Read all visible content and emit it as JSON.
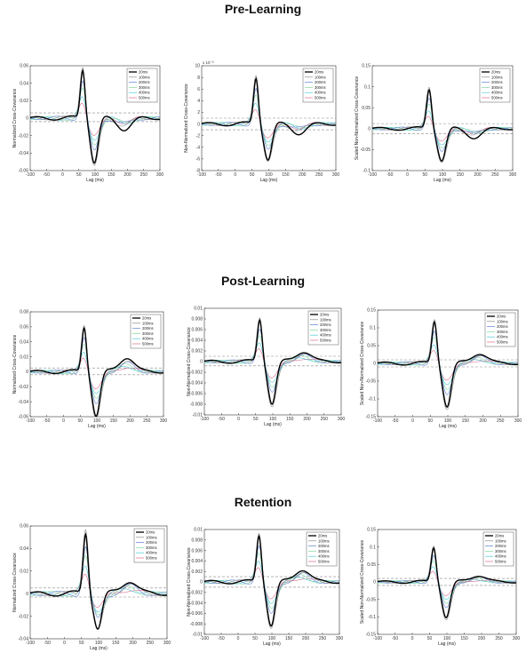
{
  "sections": [
    {
      "title": "Pre-Learning"
    },
    {
      "title": "Post-Learning"
    },
    {
      "title": "Retention"
    }
  ],
  "colors": {
    "20ms": "#000000",
    "100ms": "#8a8a8a",
    "200ms": "#5b7fd6",
    "300ms": "#7fd6a0",
    "400ms": "#49c9d6",
    "500ms": "#d96a8a",
    "threshold": "#888888"
  },
  "legend": [
    "20ms",
    "100ms",
    "200ms",
    "300ms",
    "400ms",
    "500ms"
  ],
  "chart_data": [
    {
      "type": "line",
      "section": "Pre-Learning",
      "xlabel": "Lag (ms)",
      "ylabel": "Normalized Cross-Covariance",
      "xlim": [
        -100,
        300
      ],
      "ylim": [
        -0.06,
        0.06
      ],
      "xticks": [
        "-100",
        "-50",
        "0",
        "50",
        "100",
        "150",
        "200",
        "250",
        "300"
      ],
      "yticks": [
        "0.06",
        "0.04",
        "0.02",
        "0",
        "-0.02",
        "-0.04",
        "-0.06"
      ],
      "exponent": "",
      "peak": 0.056,
      "trough": -0.05,
      "late": -0.012,
      "thr": [
        0.006,
        -0.004
      ]
    },
    {
      "type": "line",
      "section": "Pre-Learning",
      "xlabel": "Lag (ms)",
      "ylabel": "Non-Normalized Cross-Covariance",
      "xlim": [
        -100,
        300
      ],
      "ylim": [
        -8,
        10
      ],
      "xticks": [
        "-100",
        "-50",
        "0",
        "50",
        "100",
        "150",
        "200",
        "250",
        "300"
      ],
      "yticks": [
        "10",
        "8",
        "6",
        "4",
        "2",
        "0",
        "-2",
        "-4",
        "-6",
        "-8"
      ],
      "exponent": "x 10⁻³",
      "peak": 8,
      "trough": -6,
      "late": -1.5,
      "thr": [
        1,
        -1
      ]
    },
    {
      "type": "line",
      "section": "Pre-Learning",
      "xlabel": "Lag (ms)",
      "ylabel": "Scaled Non-Normalized Cross-Covariance",
      "xlim": [
        -100,
        300
      ],
      "ylim": [
        -0.1,
        0.15
      ],
      "xticks": [
        "-100",
        "-50",
        "0",
        "50",
        "100",
        "150",
        "200",
        "250",
        "300"
      ],
      "yticks": [
        "0.15",
        "0.1",
        "0.05",
        "0",
        "-0.05",
        "-0.1"
      ],
      "exponent": "",
      "peak": 0.095,
      "trough": -0.075,
      "late": -0.02,
      "thr": [
        0.012,
        -0.012
      ]
    },
    {
      "type": "line",
      "section": "Post-Learning",
      "xlabel": "Lag (ms)",
      "ylabel": "Normalized Cross-Covariance",
      "xlim": [
        -100,
        300
      ],
      "ylim": [
        -0.06,
        0.08
      ],
      "xticks": [
        "-100",
        "-50",
        "0",
        "50",
        "100",
        "150",
        "200",
        "250",
        "300"
      ],
      "yticks": [
        "0.08",
        "0.06",
        "0.04",
        "0.02",
        "0",
        "-0.02",
        "-0.04",
        "-0.06"
      ],
      "exponent": "",
      "peak": 0.06,
      "trough": -0.058,
      "late": 0.02,
      "thr": [
        0.005,
        -0.004
      ]
    },
    {
      "type": "line",
      "section": "Post-Learning",
      "xlabel": "Lag (ms)",
      "ylabel": "Non-Normalized Cross-Covariance",
      "xlim": [
        -100,
        300
      ],
      "ylim": [
        -0.01,
        0.01
      ],
      "xticks": [
        "-100",
        "-50",
        "0",
        "50",
        "100",
        "150",
        "200",
        "250",
        "300"
      ],
      "yticks": [
        "0.01",
        "0.008",
        "0.006",
        "0.004",
        "0.002",
        "0",
        "-0.002",
        "-0.004",
        "-0.006",
        "-0.008",
        "-0.01"
      ],
      "exponent": "",
      "peak": 0.008,
      "trough": -0.0078,
      "late": 0.002,
      "thr": [
        0.001,
        -0.0008
      ]
    },
    {
      "type": "line",
      "section": "Post-Learning",
      "xlabel": "Lag (ms)",
      "ylabel": "Scaled Non-Normalized Cross-Covariance",
      "xlim": [
        -100,
        300
      ],
      "ylim": [
        -0.15,
        0.15
      ],
      "xticks": [
        "-100",
        "-50",
        "0",
        "50",
        "100",
        "150",
        "200",
        "250",
        "300"
      ],
      "yticks": [
        "0.15",
        "0.1",
        "0.05",
        "0",
        "-0.05",
        "-0.1",
        "-0.15"
      ],
      "exponent": "",
      "peak": 0.12,
      "trough": -0.12,
      "late": 0.03,
      "thr": [
        0.01,
        -0.01
      ]
    },
    {
      "type": "line",
      "section": "Retention",
      "xlabel": "Lag (ms)",
      "ylabel": "Normalized Cross-Covariance",
      "xlim": [
        -100,
        300
      ],
      "ylim": [
        -0.04,
        0.06
      ],
      "xticks": [
        "-100",
        "-50",
        "0",
        "50",
        "100",
        "150",
        "200",
        "250",
        "300"
      ],
      "yticks": [
        "0.06",
        "0.04",
        "0.02",
        "0",
        "-0.02",
        "-0.04"
      ],
      "exponent": "",
      "peak": 0.054,
      "trough": -0.03,
      "late": 0.012,
      "thr": [
        0.005,
        -0.003
      ]
    },
    {
      "type": "line",
      "section": "Retention",
      "xlabel": "Lag (ms)",
      "ylabel": "Non-Normalized Cross-Covariance",
      "xlim": [
        -100,
        300
      ],
      "ylim": [
        -0.01,
        0.01
      ],
      "xticks": [
        "-100",
        "-50",
        "0",
        "50",
        "100",
        "150",
        "200",
        "250",
        "300"
      ],
      "yticks": [
        "0.01",
        "0.008",
        "0.006",
        "0.004",
        "0.002",
        "0",
        "-0.002",
        "-0.004",
        "-0.006",
        "-0.008",
        "-0.01"
      ],
      "exponent": "",
      "peak": 0.009,
      "trough": -0.0082,
      "late": 0.0025,
      "thr": [
        0.001,
        -0.001
      ]
    },
    {
      "type": "line",
      "section": "Retention",
      "xlabel": "Lag (ms)",
      "ylabel": "Scaled Non-Normalized Cross-Covariance",
      "xlim": [
        -100,
        300
      ],
      "ylim": [
        -0.15,
        0.15
      ],
      "xticks": [
        "-100",
        "-50",
        "0",
        "50",
        "100",
        "150",
        "200",
        "250",
        "300"
      ],
      "yticks": [
        "0.15",
        "0.1",
        "0.05",
        "0",
        "-0.05",
        "-0.1",
        "-0.15"
      ],
      "exponent": "",
      "peak": 0.1,
      "trough": -0.1,
      "late": 0.02,
      "thr": [
        0.01,
        -0.01
      ]
    }
  ]
}
